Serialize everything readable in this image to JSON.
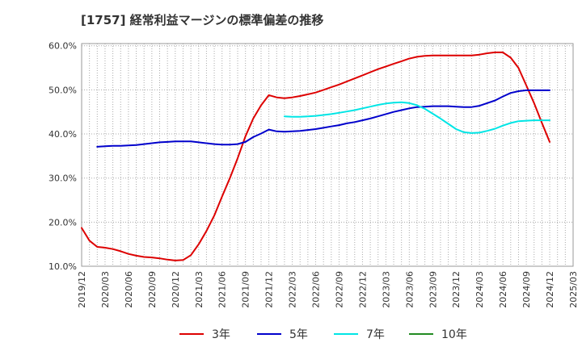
{
  "chart_data": {
    "type": "line",
    "title": "[1757]  経常利益マージンの標準偏差の推移",
    "xlabel": "",
    "ylabel": "",
    "x_ticks": [
      "2019/12",
      "2020/03",
      "2020/06",
      "2020/09",
      "2020/12",
      "2021/03",
      "2021/06",
      "2021/09",
      "2021/12",
      "2022/03",
      "2022/06",
      "2022/09",
      "2022/12",
      "2023/03",
      "2023/06",
      "2023/09",
      "2023/12",
      "2024/03",
      "2024/06",
      "2024/09",
      "2024/12",
      "2025/03"
    ],
    "y_ticks": [
      10,
      20,
      30,
      40,
      50,
      60
    ],
    "y_tick_labels": [
      "10.0%",
      "20.0%",
      "30.0%",
      "40.0%",
      "50.0%",
      "60.0%"
    ],
    "ylim": [
      10,
      60.5
    ],
    "grid": true,
    "legend_position": "bottom",
    "series": [
      {
        "name": "3年",
        "color": "#dd0000",
        "points": [
          [
            "2019/12",
            18.7
          ],
          [
            "2020/01",
            15.8
          ],
          [
            "2020/02",
            14.4
          ],
          [
            "2020/03",
            14.2
          ],
          [
            "2020/04",
            13.9
          ],
          [
            "2020/05",
            13.4
          ],
          [
            "2020/06",
            12.8
          ],
          [
            "2020/07",
            12.4
          ],
          [
            "2020/08",
            12.1
          ],
          [
            "2020/09",
            12.0
          ],
          [
            "2020/10",
            11.8
          ],
          [
            "2020/11",
            11.5
          ],
          [
            "2020/12",
            11.3
          ],
          [
            "2021/01",
            11.4
          ],
          [
            "2021/02",
            12.5
          ],
          [
            "2021/03",
            15.0
          ],
          [
            "2021/04",
            18.0
          ],
          [
            "2021/05",
            21.5
          ],
          [
            "2021/06",
            25.8
          ],
          [
            "2021/07",
            30.0
          ],
          [
            "2021/08",
            34.5
          ],
          [
            "2021/09",
            39.5
          ],
          [
            "2021/10",
            43.5
          ],
          [
            "2021/11",
            46.5
          ],
          [
            "2021/12",
            48.8
          ],
          [
            "2022/01",
            48.3
          ],
          [
            "2022/02",
            48.1
          ],
          [
            "2022/03",
            48.3
          ],
          [
            "2022/04",
            48.6
          ],
          [
            "2022/05",
            49.0
          ],
          [
            "2022/06",
            49.4
          ],
          [
            "2022/07",
            50.0
          ],
          [
            "2022/08",
            50.6
          ],
          [
            "2022/09",
            51.2
          ],
          [
            "2022/10",
            51.9
          ],
          [
            "2022/11",
            52.6
          ],
          [
            "2022/12",
            53.3
          ],
          [
            "2023/01",
            54.0
          ],
          [
            "2023/02",
            54.7
          ],
          [
            "2023/03",
            55.3
          ],
          [
            "2023/04",
            55.9
          ],
          [
            "2023/05",
            56.5
          ],
          [
            "2023/06",
            57.1
          ],
          [
            "2023/07",
            57.5
          ],
          [
            "2023/08",
            57.7
          ],
          [
            "2023/09",
            57.8
          ],
          [
            "2023/10",
            57.8
          ],
          [
            "2023/11",
            57.8
          ],
          [
            "2023/12",
            57.8
          ],
          [
            "2024/01",
            57.8
          ],
          [
            "2024/02",
            57.8
          ],
          [
            "2024/03",
            58.0
          ],
          [
            "2024/04",
            58.3
          ],
          [
            "2024/05",
            58.5
          ],
          [
            "2024/06",
            58.5
          ],
          [
            "2024/07",
            57.3
          ],
          [
            "2024/08",
            55.0
          ],
          [
            "2024/09",
            51.0
          ],
          [
            "2024/10",
            47.0
          ],
          [
            "2024/11",
            42.5
          ],
          [
            "2024/12",
            38.2
          ]
        ]
      },
      {
        "name": "5年",
        "color": "#0000cc",
        "points": [
          [
            "2020/02",
            37.1
          ],
          [
            "2020/03",
            37.2
          ],
          [
            "2020/04",
            37.3
          ],
          [
            "2020/05",
            37.3
          ],
          [
            "2020/06",
            37.4
          ],
          [
            "2020/07",
            37.5
          ],
          [
            "2020/08",
            37.7
          ],
          [
            "2020/09",
            37.9
          ],
          [
            "2020/10",
            38.1
          ],
          [
            "2020/11",
            38.2
          ],
          [
            "2020/12",
            38.3
          ],
          [
            "2021/01",
            38.3
          ],
          [
            "2021/02",
            38.3
          ],
          [
            "2021/03",
            38.1
          ],
          [
            "2021/04",
            37.9
          ],
          [
            "2021/05",
            37.7
          ],
          [
            "2021/06",
            37.6
          ],
          [
            "2021/07",
            37.6
          ],
          [
            "2021/08",
            37.7
          ],
          [
            "2021/09",
            38.2
          ],
          [
            "2021/10",
            39.3
          ],
          [
            "2021/11",
            40.1
          ],
          [
            "2021/12",
            41.0
          ],
          [
            "2022/01",
            40.6
          ],
          [
            "2022/02",
            40.5
          ],
          [
            "2022/03",
            40.6
          ],
          [
            "2022/04",
            40.7
          ],
          [
            "2022/05",
            40.9
          ],
          [
            "2022/06",
            41.1
          ],
          [
            "2022/07",
            41.4
          ],
          [
            "2022/08",
            41.7
          ],
          [
            "2022/09",
            42.0
          ],
          [
            "2022/10",
            42.4
          ],
          [
            "2022/11",
            42.7
          ],
          [
            "2022/12",
            43.1
          ],
          [
            "2023/01",
            43.5
          ],
          [
            "2023/02",
            44.0
          ],
          [
            "2023/03",
            44.5
          ],
          [
            "2023/04",
            45.0
          ],
          [
            "2023/05",
            45.4
          ],
          [
            "2023/06",
            45.8
          ],
          [
            "2023/07",
            46.1
          ],
          [
            "2023/08",
            46.2
          ],
          [
            "2023/09",
            46.3
          ],
          [
            "2023/10",
            46.3
          ],
          [
            "2023/11",
            46.3
          ],
          [
            "2023/12",
            46.2
          ],
          [
            "2024/01",
            46.1
          ],
          [
            "2024/02",
            46.1
          ],
          [
            "2024/03",
            46.4
          ],
          [
            "2024/04",
            47.0
          ],
          [
            "2024/05",
            47.6
          ],
          [
            "2024/06",
            48.5
          ],
          [
            "2024/07",
            49.3
          ],
          [
            "2024/08",
            49.7
          ],
          [
            "2024/09",
            49.9
          ],
          [
            "2024/10",
            49.9
          ],
          [
            "2024/11",
            49.9
          ],
          [
            "2024/12",
            49.9
          ]
        ]
      },
      {
        "name": "7年",
        "color": "#00e5e5",
        "points": [
          [
            "2022/02",
            44.0
          ],
          [
            "2022/03",
            43.9
          ],
          [
            "2022/04",
            43.9
          ],
          [
            "2022/05",
            44.0
          ],
          [
            "2022/06",
            44.1
          ],
          [
            "2022/07",
            44.3
          ],
          [
            "2022/08",
            44.5
          ],
          [
            "2022/09",
            44.8
          ],
          [
            "2022/10",
            45.1
          ],
          [
            "2022/11",
            45.4
          ],
          [
            "2022/12",
            45.8
          ],
          [
            "2023/01",
            46.2
          ],
          [
            "2023/02",
            46.6
          ],
          [
            "2023/03",
            46.9
          ],
          [
            "2023/04",
            47.1
          ],
          [
            "2023/05",
            47.2
          ],
          [
            "2023/06",
            47.0
          ],
          [
            "2023/07",
            46.5
          ],
          [
            "2023/08",
            45.7
          ],
          [
            "2023/09",
            44.6
          ],
          [
            "2023/10",
            43.5
          ],
          [
            "2023/11",
            42.3
          ],
          [
            "2023/12",
            41.1
          ],
          [
            "2024/01",
            40.4
          ],
          [
            "2024/02",
            40.2
          ],
          [
            "2024/03",
            40.3
          ],
          [
            "2024/04",
            40.7
          ],
          [
            "2024/05",
            41.2
          ],
          [
            "2024/06",
            41.9
          ],
          [
            "2024/07",
            42.5
          ],
          [
            "2024/08",
            42.9
          ],
          [
            "2024/09",
            43.0
          ],
          [
            "2024/10",
            43.1
          ],
          [
            "2024/11",
            43.1
          ],
          [
            "2024/12",
            43.1
          ]
        ]
      },
      {
        "name": "10年",
        "color": "#228b22",
        "points": []
      }
    ]
  }
}
